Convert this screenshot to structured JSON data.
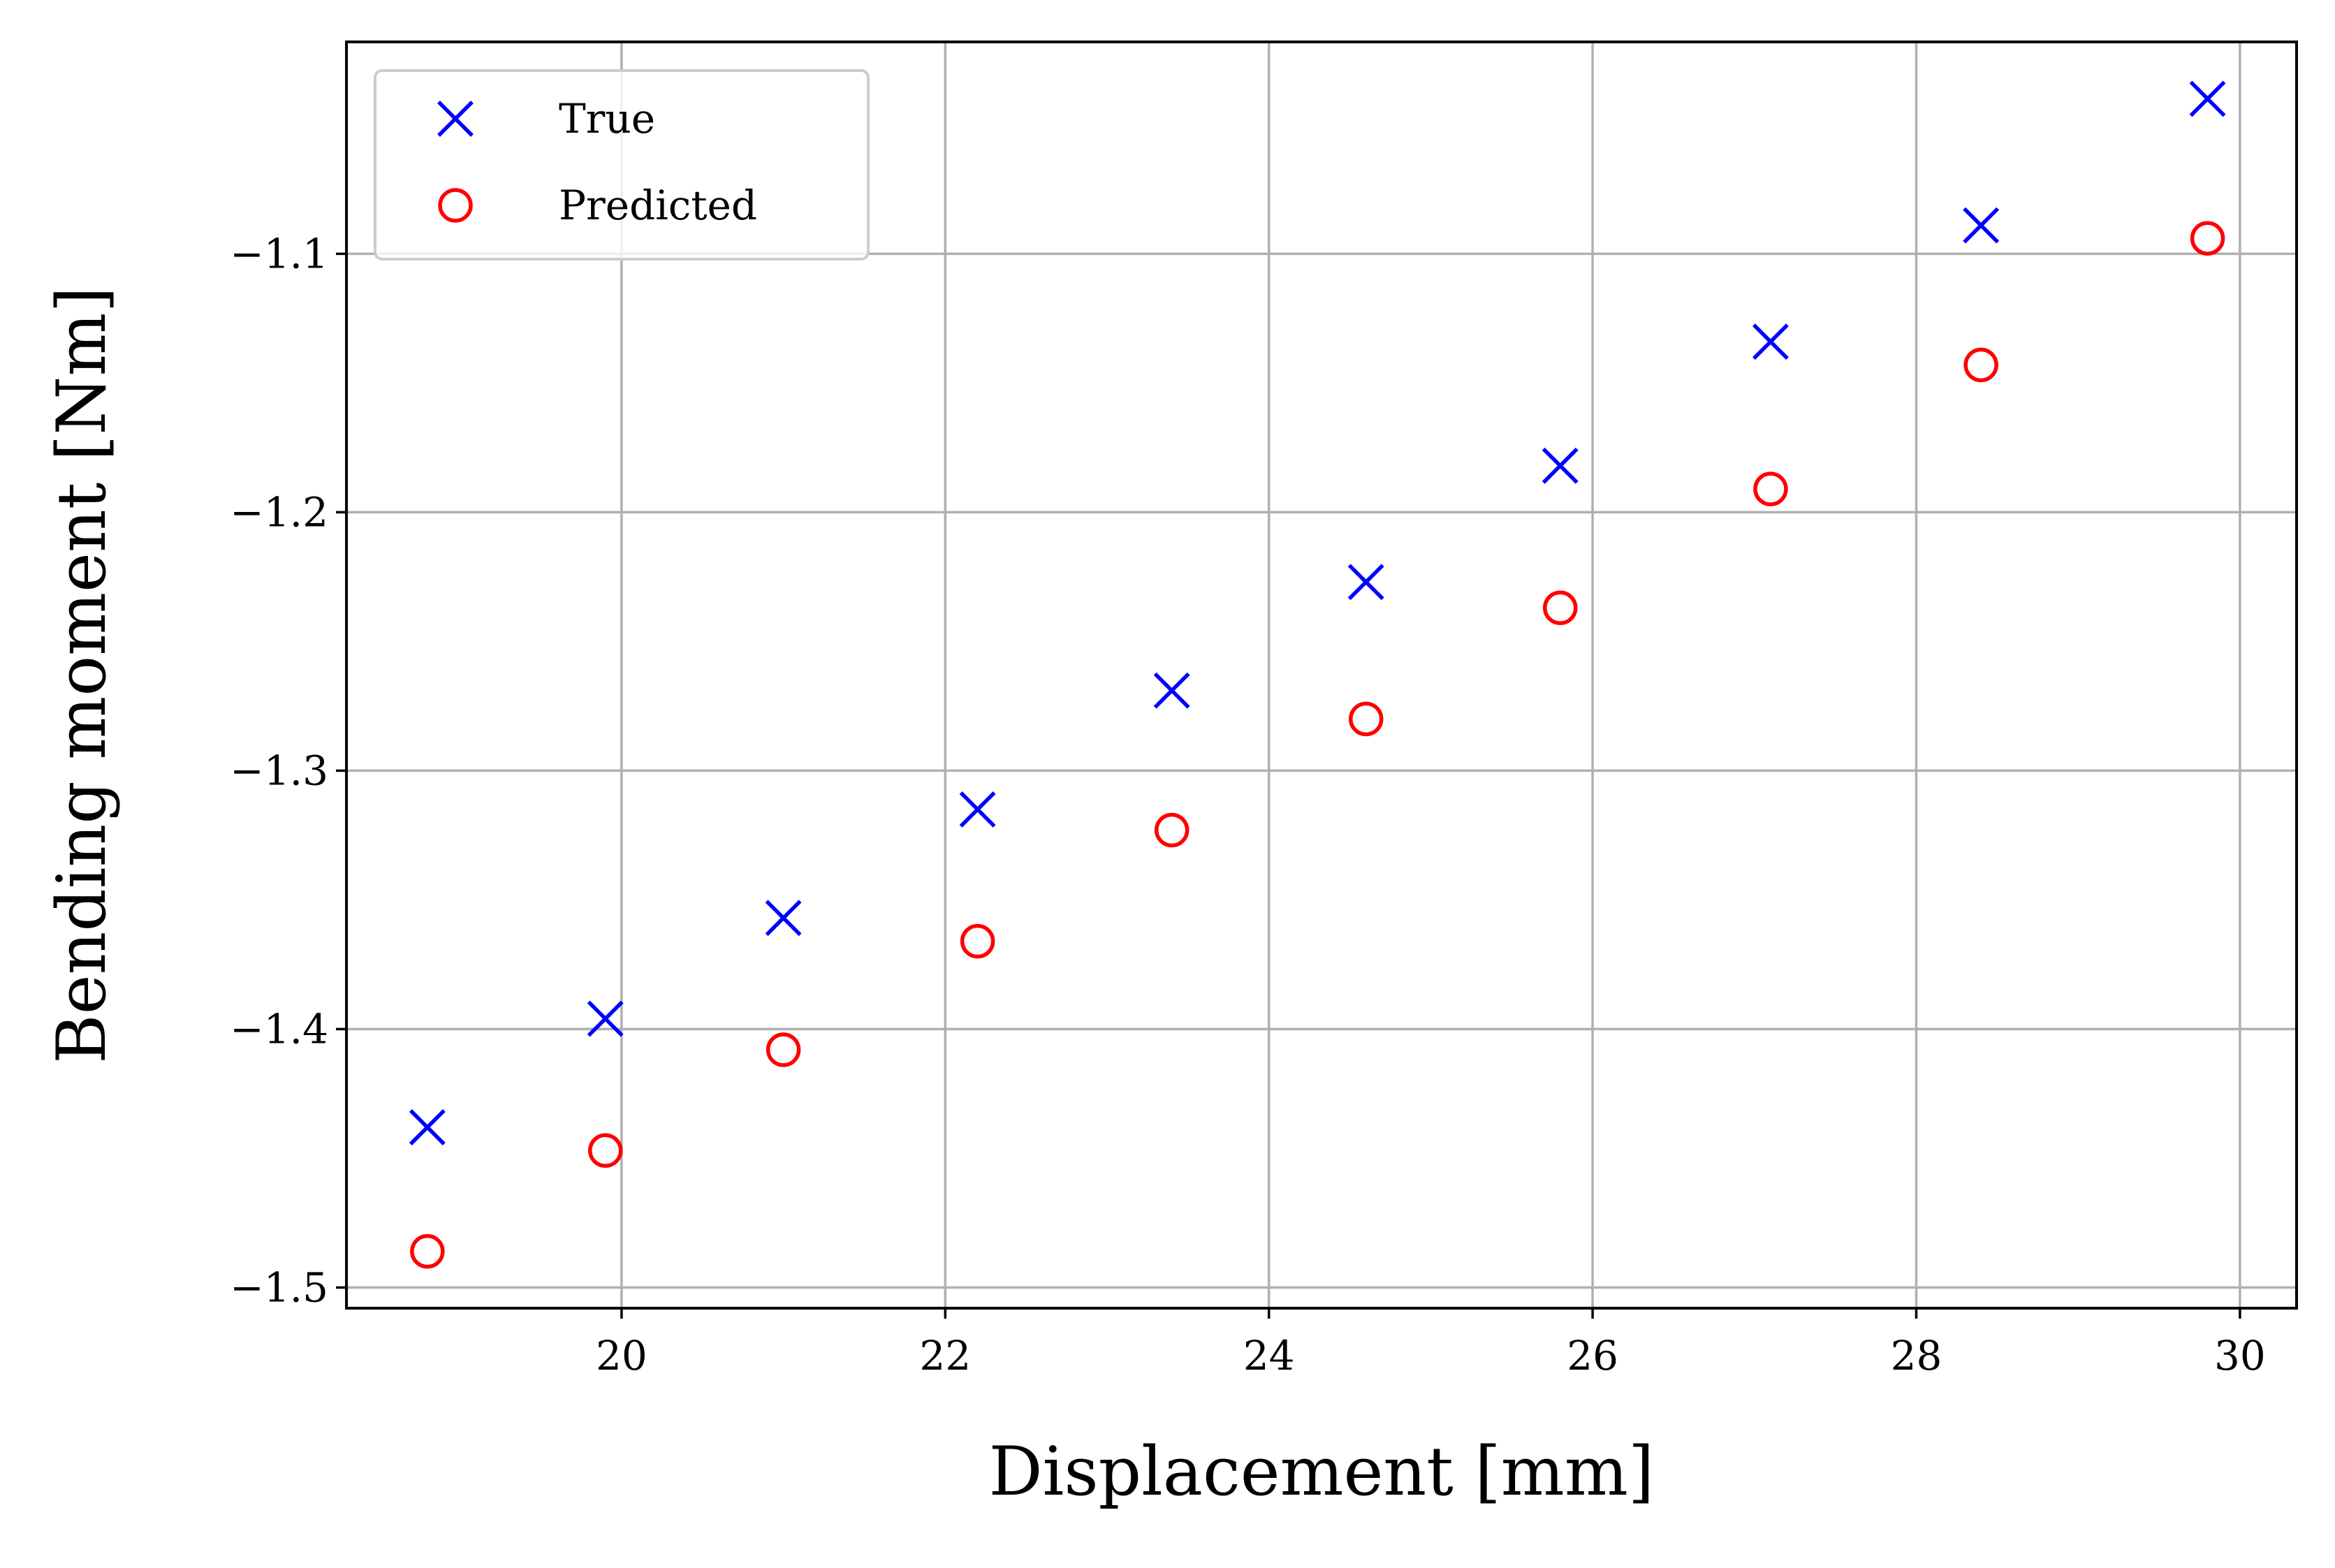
{
  "chart_data": {
    "type": "scatter",
    "title": "",
    "xlabel": "Displacement [mm]",
    "ylabel": "Bending moment [Nm]",
    "xlim": [
      18.3,
      30.35
    ],
    "ylim": [
      -1.508,
      -1.018
    ],
    "x_ticks": [
      20,
      22,
      24,
      26,
      28,
      30
    ],
    "x_tick_labels": [
      "20",
      "22",
      "24",
      "26",
      "28",
      "30"
    ],
    "y_ticks": [
      -1.5,
      -1.4,
      -1.3,
      -1.2,
      -1.1
    ],
    "y_tick_labels": [
      "−1.5",
      "−1.4",
      "−1.3",
      "−1.2",
      "−1.1"
    ],
    "grid": true,
    "legend_position": "top-left",
    "series": [
      {
        "name": "True",
        "marker": "x",
        "color": "#0000ff",
        "x": [
          18.8,
          19.9,
          21.0,
          22.2,
          23.4,
          24.6,
          25.8,
          27.1,
          28.4,
          29.8
        ],
        "y": [
          -1.438,
          -1.396,
          -1.357,
          -1.315,
          -1.269,
          -1.227,
          -1.182,
          -1.134,
          -1.089,
          -1.04
        ]
      },
      {
        "name": "Predicted",
        "marker": "o",
        "color": "#ff0000",
        "x": [
          18.8,
          19.9,
          21.0,
          22.2,
          23.4,
          24.6,
          25.8,
          27.1,
          28.4,
          29.8
        ],
        "y": [
          -1.486,
          -1.447,
          -1.408,
          -1.366,
          -1.323,
          -1.28,
          -1.237,
          -1.191,
          -1.143,
          -1.094
        ]
      }
    ]
  },
  "colors": {
    "grid": "#b0b0b0",
    "axis": "#000000",
    "legend_border": "#cccccc"
  }
}
